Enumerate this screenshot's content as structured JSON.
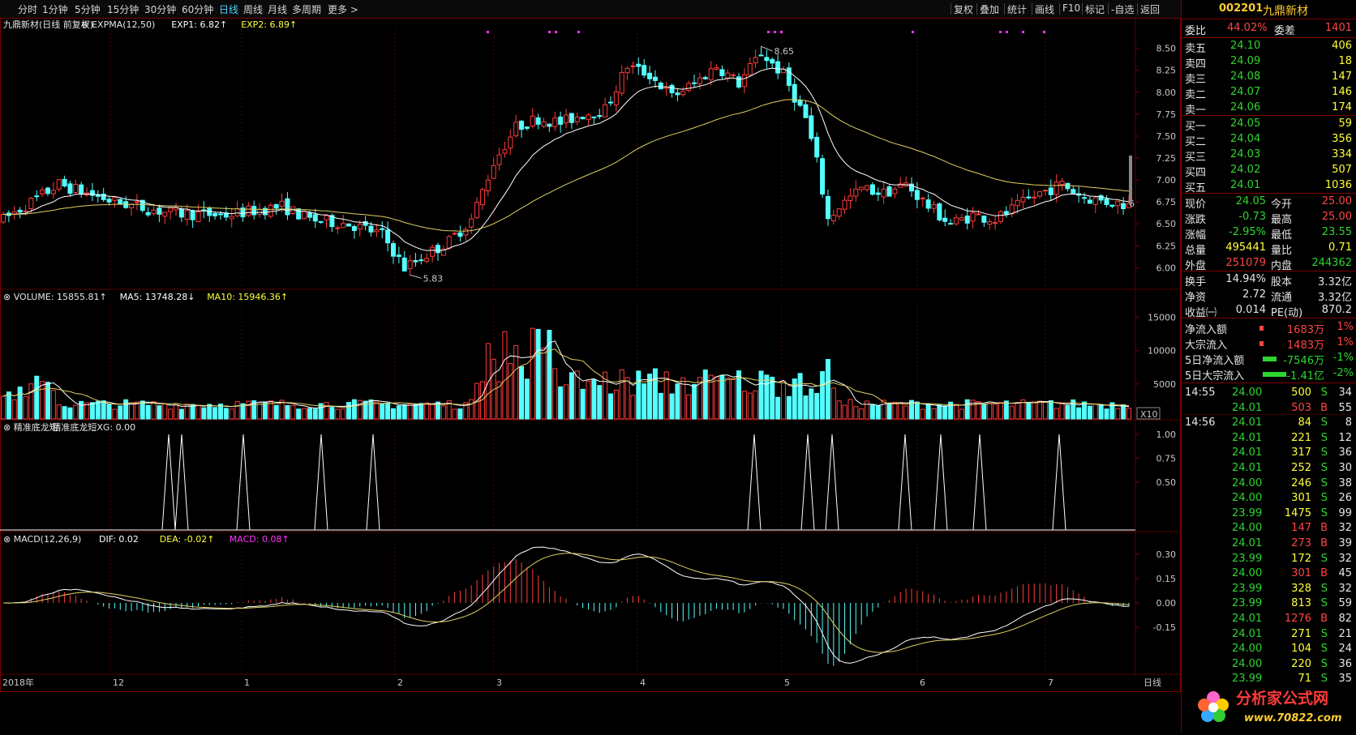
{
  "toolbar": {
    "periods": [
      "分时",
      "1分钟",
      "5分钟",
      "15分钟",
      "30分钟",
      "60分钟",
      "日线",
      "周线",
      "月线",
      "多周期",
      "更多"
    ],
    "active_period": "日线",
    "tools": [
      "复权",
      "叠加",
      "统计",
      "画线",
      "F10",
      "标记",
      "-自选",
      "返回"
    ]
  },
  "main_chart": {
    "title": "九鼎新材(日线 前复权)",
    "indicator": "EXPMA(12,50)",
    "exp1": "EXP1: 6.82",
    "exp2": "EXP2: 6.89",
    "high_label": "8.65",
    "low_label": "5.83",
    "last_tag": "6",
    "y_ticks": [
      "8.50",
      "8.25",
      "8.00",
      "7.75",
      "7.50",
      "7.25",
      "7.00",
      "6.75",
      "6.50",
      "6.25",
      "6.00"
    ]
  },
  "volume_chart": {
    "title": "VOLUME: 15855.81",
    "ma5": "MA5: 13748.28",
    "ma10": "MA10: 15946.36",
    "y_ticks": [
      "15000",
      "10000",
      "5000"
    ],
    "unit": "X10"
  },
  "signal_chart": {
    "title": "精准底龙短",
    "sub": "精准底龙短XG: 0.00",
    "y_ticks": [
      "1.00",
      "0.75",
      "0.50"
    ]
  },
  "macd_chart": {
    "title": "MACD(12,26,9)",
    "dif": "DIF: 0.02",
    "dea": "DEA: -0.02",
    "macd": "MACD: 0.08",
    "y_ticks": [
      "0.30",
      "0.15",
      "0.00",
      "-0.15"
    ]
  },
  "x_axis": {
    "labels": [
      "2018年",
      "12",
      "1",
      "2",
      "3",
      "4",
      "5",
      "6",
      "7"
    ],
    "period_label": "日线"
  },
  "colors": {
    "up": "#ff3b3b",
    "down": "#54ffff",
    "exp1": "#ffffff",
    "exp2": "#e0d060",
    "border": "#7a0000"
  },
  "panel": {
    "code": "002201",
    "name": "九鼎新材",
    "weibi_label": "委比",
    "weibi_value": "44.02%",
    "weicha_label": "委差",
    "weicha_value": "1401",
    "asks": [
      {
        "label": "卖五",
        "price": "24.10",
        "vol": "406"
      },
      {
        "label": "卖四",
        "price": "24.09",
        "vol": "18"
      },
      {
        "label": "卖三",
        "price": "24.08",
        "vol": "147"
      },
      {
        "label": "卖二",
        "price": "24.07",
        "vol": "146"
      },
      {
        "label": "卖一",
        "price": "24.06",
        "vol": "174"
      }
    ],
    "bids": [
      {
        "label": "买一",
        "price": "24.05",
        "vol": "59"
      },
      {
        "label": "买二",
        "price": "24.04",
        "vol": "356"
      },
      {
        "label": "买三",
        "price": "24.03",
        "vol": "334"
      },
      {
        "label": "买四",
        "price": "24.02",
        "vol": "507"
      },
      {
        "label": "买五",
        "price": "24.01",
        "vol": "1036"
      }
    ],
    "quote": [
      {
        "l1": "现价",
        "v1": "24.05",
        "l2": "今开",
        "v2": "25.00"
      },
      {
        "l1": "涨跌",
        "v1": "-0.73",
        "l2": "最高",
        "v2": "25.00"
      },
      {
        "l1": "涨幅",
        "v1": "-2.95%",
        "l2": "最低",
        "v2": "23.55"
      },
      {
        "l1": "总量",
        "v1": "495441",
        "l2": "量比",
        "v2": "0.71"
      },
      {
        "l1": "外盘",
        "v1": "251079",
        "l2": "内盘",
        "v2": "244362"
      }
    ],
    "info": [
      {
        "l1": "换手",
        "v1": "14.94%",
        "l2": "股本",
        "v2": "3.32亿"
      },
      {
        "l1": "净资",
        "v1": "2.72",
        "l2": "流通",
        "v2": "3.32亿"
      },
      {
        "l1": "收益㈠",
        "v1": "0.014",
        "l2": "PE(动)",
        "v2": "870.2"
      }
    ],
    "flows": [
      {
        "label": "净流入额",
        "value": "1683万",
        "pct": "1%",
        "bar": 0.05
      },
      {
        "label": "大宗流入",
        "value": "1483万",
        "pct": "1%",
        "bar": 0.05
      },
      {
        "label": "5日净流入额",
        "value": "-7546万",
        "pct": "-1%",
        "bar": 0.25
      },
      {
        "label": "5日大宗流入",
        "value": "-1.41亿",
        "pct": "-2%",
        "bar": 0.45
      }
    ],
    "ticks": [
      {
        "time": "14:55",
        "price": "24.00",
        "vol": "500",
        "side": "S",
        "n": "34"
      },
      {
        "time": "",
        "price": "24.01",
        "vol": "503",
        "side": "B",
        "n": "55"
      },
      {
        "time": "14:56",
        "price": "24.01",
        "vol": "84",
        "side": "S",
        "n": "8"
      },
      {
        "time": "",
        "price": "24.01",
        "vol": "221",
        "side": "S",
        "n": "12"
      },
      {
        "time": "",
        "price": "24.01",
        "vol": "317",
        "side": "S",
        "n": "36"
      },
      {
        "time": "",
        "price": "24.01",
        "vol": "252",
        "side": "S",
        "n": "30"
      },
      {
        "time": "",
        "price": "24.00",
        "vol": "246",
        "side": "S",
        "n": "38"
      },
      {
        "time": "",
        "price": "24.00",
        "vol": "301",
        "side": "S",
        "n": "26"
      },
      {
        "time": "",
        "price": "23.99",
        "vol": "1475",
        "side": "S",
        "n": "99"
      },
      {
        "time": "",
        "price": "24.00",
        "vol": "147",
        "side": "B",
        "n": "32"
      },
      {
        "time": "",
        "price": "24.01",
        "vol": "273",
        "side": "B",
        "n": "39"
      },
      {
        "time": "",
        "price": "23.99",
        "vol": "172",
        "side": "S",
        "n": "32"
      },
      {
        "time": "",
        "price": "24.00",
        "vol": "301",
        "side": "B",
        "n": "45"
      },
      {
        "time": "",
        "price": "23.99",
        "vol": "328",
        "side": "S",
        "n": "32"
      },
      {
        "time": "",
        "price": "23.99",
        "vol": "813",
        "side": "S",
        "n": "59"
      },
      {
        "time": "",
        "price": "24.01",
        "vol": "1276",
        "side": "B",
        "n": "82"
      },
      {
        "time": "",
        "price": "24.01",
        "vol": "271",
        "side": "S",
        "n": "21"
      },
      {
        "time": "",
        "price": "24.00",
        "vol": "104",
        "side": "S",
        "n": "24"
      },
      {
        "time": "",
        "price": "24.00",
        "vol": "220",
        "side": "S",
        "n": "36"
      },
      {
        "time": "",
        "price": "23.99",
        "vol": "71",
        "side": "S",
        "n": "35"
      }
    ],
    "logo_text": "分析家公式网",
    "logo_url_text": "www.70822.com"
  }
}
